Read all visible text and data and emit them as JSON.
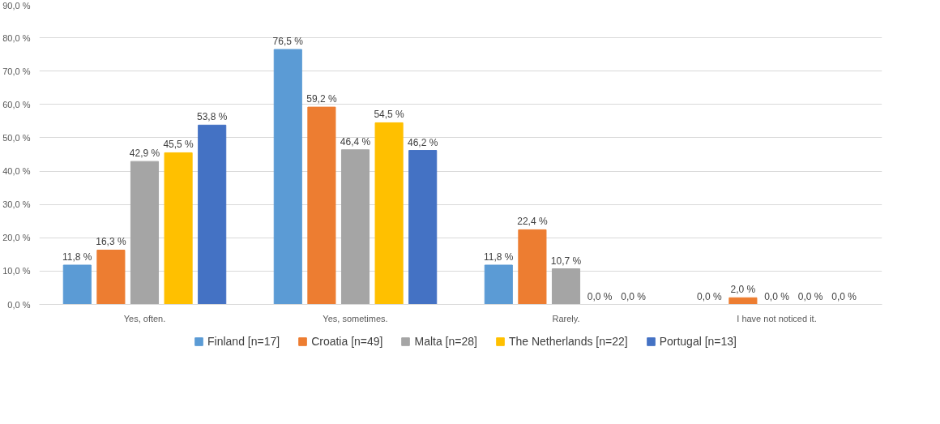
{
  "chart_data": {
    "type": "bar",
    "categories": [
      "Yes, often.",
      "Yes, sometimes.",
      "Rarely.",
      "I have not noticed it."
    ],
    "series": [
      {
        "name": "Finland [n=17]",
        "color": "#5b9bd5",
        "values": [
          11.8,
          76.5,
          11.8,
          0.0
        ],
        "value_labels": [
          "11,8 %",
          "76,5 %",
          "11,8 %",
          "0,0 %"
        ]
      },
      {
        "name": "Croatia [n=49]",
        "color": "#ed7d31",
        "values": [
          16.3,
          59.2,
          22.4,
          2.0
        ],
        "value_labels": [
          "16,3 %",
          "59,2 %",
          "22,4 %",
          "2,0 %"
        ]
      },
      {
        "name": "Malta [n=28]",
        "color": "#a5a5a5",
        "values": [
          42.9,
          46.4,
          10.7,
          0.0
        ],
        "value_labels": [
          "42,9 %",
          "46,4 %",
          "10,7 %",
          "0,0 %"
        ]
      },
      {
        "name": "The Netherlands [n=22]",
        "color": "#ffc000",
        "values": [
          45.5,
          54.5,
          0.0,
          0.0
        ],
        "value_labels": [
          "45,5 %",
          "54,5 %",
          "0,0 %",
          "0,0 %"
        ]
      },
      {
        "name": "Portugal [n=13]",
        "color": "#4472c4",
        "values": [
          53.8,
          46.2,
          0.0,
          0.0
        ],
        "value_labels": [
          "53,8 %",
          "46,2 %",
          "0,0 %",
          "0,0 %"
        ]
      }
    ],
    "ylim": [
      0,
      90
    ],
    "yticks": [
      {
        "value": 0,
        "label": "0,0 %"
      },
      {
        "value": 10,
        "label": "10,0 %"
      },
      {
        "value": 20,
        "label": "20,0 %"
      },
      {
        "value": 30,
        "label": "30,0 %"
      },
      {
        "value": 40,
        "label": "40,0 %"
      },
      {
        "value": 50,
        "label": "50,0 %"
      },
      {
        "value": 60,
        "label": "60,0 %"
      },
      {
        "value": 70,
        "label": "70,0 %"
      },
      {
        "value": 80,
        "label": "80,0 %"
      },
      {
        "value": 90,
        "label": "90,0 %"
      }
    ],
    "grid": "y",
    "legend": "bottom"
  }
}
